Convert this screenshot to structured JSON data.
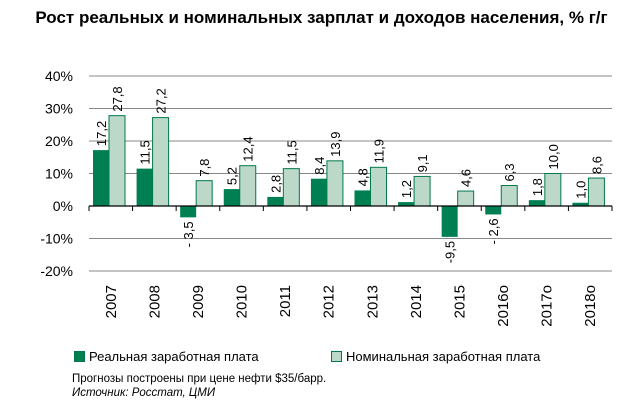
{
  "chart_data": {
    "type": "bar",
    "title": "Рост реальных и номинальных зарплат и доходов населения, % г/г",
    "categories": [
      "2007",
      "2008",
      "2009",
      "2010",
      "2011",
      "2012",
      "2013",
      "2014",
      "2015",
      "2016о",
      "2017о",
      "2018о"
    ],
    "series": [
      {
        "name": "Реальная заработная плата",
        "color": "#008052",
        "values": [
          17.2,
          11.5,
          -3.5,
          5.2,
          2.8,
          8.4,
          4.8,
          1.2,
          -9.5,
          -2.6,
          1.8,
          1.0
        ],
        "labels": [
          "17,2",
          "11,5",
          "- 3,5",
          "5,2",
          "2,8",
          "8,4",
          "4,8",
          "1,2",
          "-9,5",
          "- 2,6",
          "1,8",
          "1,0"
        ]
      },
      {
        "name": "Номинальная заработная плата",
        "color": "#bcd8c9",
        "values": [
          27.8,
          27.2,
          7.8,
          12.4,
          11.5,
          13.9,
          11.9,
          9.1,
          4.6,
          6.3,
          10.0,
          8.6
        ],
        "labels": [
          "27,8",
          "27,2",
          "7,8",
          "12,4",
          "11,5",
          "13,9",
          "11,9",
          "9,1",
          "4,6",
          "6,3",
          "10,0",
          "8,6"
        ]
      }
    ],
    "yticks": [
      "40%",
      "30%",
      "20%",
      "10%",
      "0%",
      "-10%",
      "-20%"
    ],
    "ytick_values": [
      40,
      30,
      20,
      10,
      0,
      -10,
      -20
    ],
    "ylim": [
      -20,
      40
    ],
    "grid": true,
    "legend": "bottom"
  },
  "notes": {
    "line1": "Прогнозы построены при  цене нефти $35/барр.",
    "line2": "Источник: Росстат, ЦМИ"
  }
}
